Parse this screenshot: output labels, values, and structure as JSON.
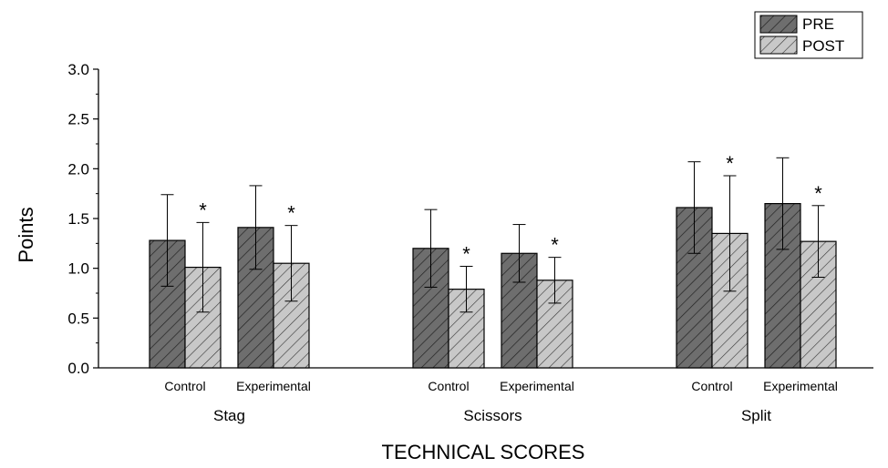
{
  "chart_data": {
    "type": "bar",
    "title": "",
    "xlabel": "TECHNICAL SCORES",
    "ylabel": "Points",
    "ylim": [
      0,
      3.0
    ],
    "yticks": [
      "0.0",
      "0.5",
      "1.0",
      "1.5",
      "2.0",
      "2.5",
      "3.0"
    ],
    "categories": [
      "Stag",
      "Scissors",
      "Split"
    ],
    "groups": [
      "Control",
      "Experimental"
    ],
    "legend": {
      "placement": "top-right",
      "entries": [
        "PRE",
        "POST"
      ]
    },
    "series": [
      {
        "name": "PRE",
        "color": "#6e6e6e",
        "values": [
          [
            1.28,
            1.41
          ],
          [
            1.2,
            1.15
          ],
          [
            1.61,
            1.65
          ]
        ],
        "errors": [
          [
            0.46,
            0.42
          ],
          [
            0.39,
            0.29
          ],
          [
            0.46,
            0.46
          ]
        ]
      },
      {
        "name": "POST",
        "color": "#c8c8c8",
        "values": [
          [
            1.01,
            1.05
          ],
          [
            0.79,
            0.88
          ],
          [
            1.35,
            1.27
          ]
        ],
        "errors": [
          [
            0.45,
            0.38
          ],
          [
            0.23,
            0.23
          ],
          [
            0.58,
            0.36
          ]
        ]
      }
    ],
    "significance_marker": "*",
    "significant_post": [
      [
        true,
        true
      ],
      [
        true,
        true
      ],
      [
        true,
        true
      ]
    ]
  }
}
